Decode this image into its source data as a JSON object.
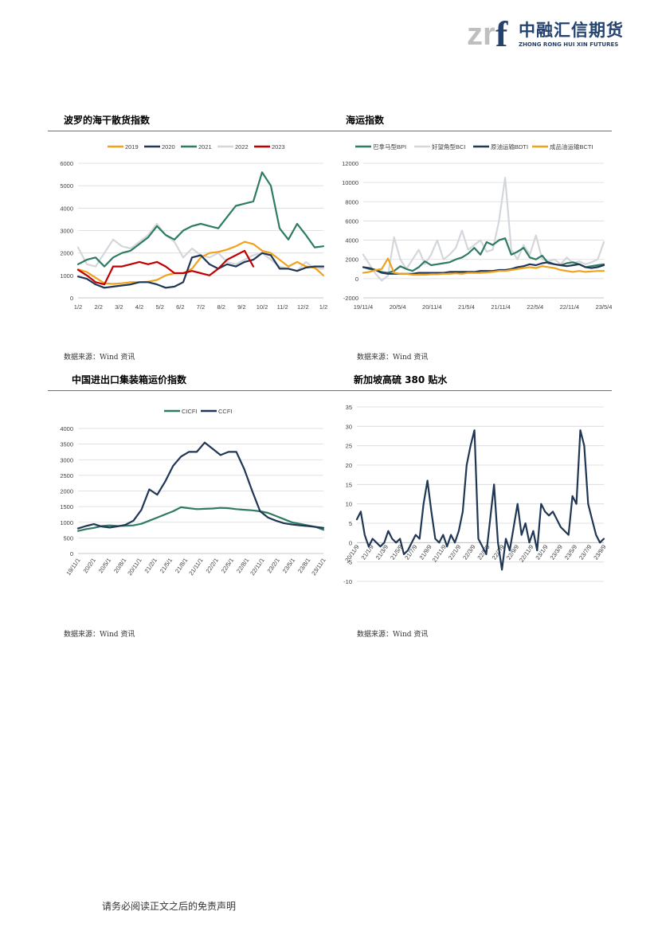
{
  "header": {
    "logo_mark": "zrf",
    "logo_cn": "中融汇信期货",
    "logo_en": "ZHONG RONG HUI XIN FUTURES"
  },
  "colors": {
    "orange": "#f0a21c",
    "navy": "#1f3654",
    "teal": "#2e7b62",
    "lightgray": "#d3d7dc",
    "red": "#c00000",
    "logo_gray": "#bfbfbf",
    "logo_blue": "#24426e"
  },
  "sections": {
    "bdi": {
      "title": "波罗的海干散货指数",
      "source": "数据来源：Wind 资讯"
    },
    "shipping": {
      "title": "海运指数",
      "source": "数据来源：Wind 资讯"
    },
    "container": {
      "title": "中国进出口集装箱运价指数",
      "source": "数据来源：Wind 资讯"
    },
    "fuel": {
      "title": "新加坡高硫 380 贴水",
      "source": "数据来源：Wind 资讯"
    }
  },
  "footer": {
    "disclaimer": "请务必阅读正文之后的免责声明"
  },
  "chart_data": [
    {
      "type": "line",
      "x_ticks": [
        "1/2",
        "2/2",
        "3/2",
        "4/2",
        "5/2",
        "6/2",
        "7/2",
        "8/2",
        "9/2",
        "10/2",
        "11/2",
        "12/2",
        "1/2"
      ],
      "ylim": [
        0,
        6000
      ],
      "y_ticks": [
        0,
        1000,
        2000,
        3000,
        4000,
        5000,
        6000
      ],
      "legend_position": "top",
      "grid": true,
      "series": [
        {
          "name": "2019",
          "color": "#f0a21c",
          "values": [
            1270,
            1150,
            900,
            650,
            620,
            650,
            700,
            700,
            720,
            800,
            1000,
            1100,
            1100,
            1300,
            1800,
            2000,
            2050,
            2150,
            2300,
            2500,
            2400,
            2100,
            2000,
            1700,
            1400,
            1600,
            1400,
            1350,
            1000
          ]
        },
        {
          "name": "2020",
          "color": "#1f3654",
          "values": [
            950,
            850,
            600,
            450,
            500,
            550,
            600,
            700,
            700,
            600,
            450,
            500,
            700,
            1800,
            1900,
            1500,
            1300,
            1500,
            1400,
            1600,
            1700,
            2000,
            1900,
            1300,
            1300,
            1200,
            1350,
            1400,
            1400
          ]
        },
        {
          "name": "2021",
          "color": "#2e7b62",
          "values": [
            1500,
            1700,
            1800,
            1400,
            1800,
            2000,
            2100,
            2400,
            2700,
            3200,
            2800,
            2600,
            3000,
            3200,
            3300,
            3200,
            3100,
            3600,
            4100,
            4200,
            4300,
            5600,
            5000,
            3100,
            2600,
            3300,
            2800,
            2250,
            2300
          ]
        },
        {
          "name": "2022",
          "color": "#d3d7dc",
          "values": [
            2250,
            1500,
            1400,
            2000,
            2600,
            2300,
            2200,
            2500,
            2800,
            3300,
            2800,
            2500,
            1800,
            2200,
            1900,
            1800,
            2000,
            1600,
            1500,
            1700,
            1900,
            2000,
            1700,
            1400,
            1300,
            1200,
            1600,
            1300,
            1300
          ]
        },
        {
          "name": "2023",
          "color": "#c00000",
          "values": [
            1250,
            1000,
            700,
            600,
            1400,
            1400,
            1500,
            1600,
            1500,
            1600,
            1400,
            1100,
            1100,
            1200,
            1100,
            1000,
            1300,
            1700,
            1900,
            2100,
            1400
          ]
        }
      ]
    },
    {
      "type": "line",
      "x_ticks": [
        "19/11/4",
        "20/5/4",
        "20/11/4",
        "21/5/4",
        "21/11/4",
        "22/5/4",
        "22/11/4",
        "23/5/4"
      ],
      "ylim": [
        -2000,
        12000
      ],
      "y_ticks": [
        -2000,
        0,
        2000,
        4000,
        6000,
        8000,
        10000,
        12000
      ],
      "legend_position": "top",
      "grid": true,
      "series": [
        {
          "name": "巴拿马型BPI",
          "color": "#2e7b62",
          "values": [
            1200,
            1000,
            900,
            700,
            600,
            800,
            1300,
            1000,
            800,
            1200,
            1800,
            1400,
            1500,
            1600,
            1700,
            2000,
            2200,
            2600,
            3200,
            2500,
            3800,
            3500,
            4000,
            4200,
            2500,
            2800,
            3200,
            2200,
            2000,
            2400,
            1600,
            1500,
            1400,
            1600,
            1700,
            1500,
            1200,
            1300,
            1400,
            1500
          ]
        },
        {
          "name": "好望角型BCI",
          "color": "#d3d7dc",
          "values": [
            2500,
            1500,
            500,
            -200,
            300,
            4300,
            2000,
            1000,
            2000,
            3000,
            1500,
            2500,
            4000,
            2000,
            2500,
            3200,
            5000,
            3000,
            3500,
            4000,
            2800,
            3000,
            6000,
            10500,
            3000,
            2000,
            3500,
            2500,
            4500,
            2000,
            1800,
            2000,
            1500,
            2200,
            1600,
            1800,
            1500,
            1700,
            2000,
            3800
          ]
        },
        {
          "name": "原油运输BDTI",
          "color": "#1f3654",
          "values": [
            1200,
            1100,
            900,
            600,
            500,
            500,
            500,
            500,
            500,
            600,
            600,
            600,
            600,
            600,
            700,
            700,
            700,
            700,
            700,
            800,
            800,
            800,
            900,
            900,
            1000,
            1200,
            1300,
            1500,
            1400,
            1600,
            1700,
            1500,
            1400,
            1300,
            1400,
            1500,
            1200,
            1100,
            1200,
            1400
          ]
        },
        {
          "name": "成品油运输BCTI",
          "color": "#f0a21c",
          "values": [
            600,
            700,
            900,
            1000,
            2100,
            600,
            500,
            500,
            400,
            400,
            400,
            450,
            450,
            500,
            500,
            550,
            500,
            600,
            600,
            600,
            650,
            700,
            800,
            800,
            900,
            1000,
            1100,
            1200,
            1100,
            1300,
            1200,
            1100,
            900,
            800,
            700,
            800,
            700,
            750,
            800,
            800
          ]
        }
      ]
    },
    {
      "type": "line",
      "x_ticks": [
        "19/11/1",
        "20/2/1",
        "20/5/1",
        "20/8/1",
        "20/11/1",
        "21/2/1",
        "21/5/1",
        "21/8/1",
        "21/11/1",
        "22/2/1",
        "22/5/1",
        "22/8/1",
        "22/11/1",
        "23/2/1",
        "23/5/1",
        "23/8/1",
        "23/11/1"
      ],
      "ylim": [
        0,
        4000
      ],
      "y_ticks": [
        0,
        500,
        1000,
        1500,
        2000,
        2500,
        3000,
        3500,
        4000
      ],
      "legend_position": "top",
      "grid": true,
      "series": [
        {
          "name": "CICFI",
          "color": "#2e7b62",
          "values": [
            720,
            780,
            820,
            880,
            900,
            880,
            890,
            900,
            950,
            1050,
            1150,
            1250,
            1350,
            1480,
            1450,
            1420,
            1430,
            1440,
            1460,
            1450,
            1420,
            1400,
            1380,
            1350,
            1300,
            1200,
            1100,
            1000,
            950,
            900,
            850,
            760
          ]
        },
        {
          "name": "CCFI",
          "color": "#1f3654",
          "values": [
            800,
            880,
            940,
            860,
            830,
            870,
            920,
            1050,
            1400,
            2050,
            1880,
            2300,
            2800,
            3100,
            3250,
            3250,
            3550,
            3350,
            3150,
            3250,
            3250,
            2700,
            2000,
            1350,
            1150,
            1050,
            970,
            930,
            900,
            880,
            850,
            820
          ]
        }
      ]
    },
    {
      "type": "line",
      "x_ticks": [
        "20/11/9",
        "21/1/9",
        "21/3/9",
        "21/5/9",
        "21/7/9",
        "21/9/9",
        "21/11/9",
        "22/1/9",
        "22/3/9",
        "22/5/9",
        "22/7/9",
        "22/9/9",
        "22/11/9",
        "23/1/9",
        "23/3/9",
        "23/5/9",
        "23/7/9",
        "23/9/9"
      ],
      "ylim": [
        -10,
        35
      ],
      "y_ticks": [
        -10,
        -5,
        0,
        5,
        10,
        15,
        20,
        25,
        30,
        35
      ],
      "legend_position": "none",
      "grid": true,
      "series": [
        {
          "name": "",
          "color": "#1f3654",
          "values": [
            6,
            8,
            2,
            -1,
            1,
            0,
            -1,
            0,
            3,
            1,
            0,
            1,
            -3,
            -2,
            0,
            2,
            1,
            10,
            16,
            8,
            1,
            0,
            2,
            -1,
            2,
            0,
            3,
            8,
            20,
            25,
            29,
            1,
            -1,
            -3,
            6,
            15,
            0,
            -7,
            1,
            -2,
            4,
            10,
            2,
            5,
            0,
            3,
            -2,
            10,
            8,
            7,
            8,
            6,
            4,
            3,
            2,
            12,
            10,
            29,
            25,
            10,
            6,
            2,
            0,
            1
          ]
        }
      ]
    }
  ]
}
